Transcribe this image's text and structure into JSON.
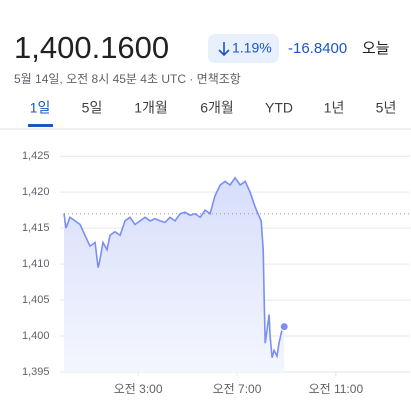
{
  "header": {
    "price": "1,400.1600",
    "change_percent": "1.19%",
    "change": "-16.8400",
    "period": "오늘",
    "subtitle": "5월 14일, 오전 8시 45분 4초 UTC · 면책조항"
  },
  "tabs": [
    "1일",
    "5일",
    "1개월",
    "6개월",
    "YTD",
    "1년",
    "5년"
  ],
  "chart_data": {
    "type": "line",
    "x": [
      0,
      0.08,
      0.24,
      0.45,
      0.65,
      0.85,
      1.05,
      1.26,
      1.38,
      1.42,
      1.58,
      1.74,
      1.86,
      2.06,
      2.27,
      2.47,
      2.67,
      2.87,
      3.08,
      3.28,
      3.48,
      3.68,
      3.89,
      4.09,
      4.29,
      4.49,
      4.7,
      4.9,
      5.1,
      5.3,
      5.51,
      5.71,
      5.91,
      6.11,
      6.32,
      6.52,
      6.72,
      6.92,
      7.13,
      7.33,
      7.53,
      7.73,
      7.85,
      7.98,
      8.06,
      8.1,
      8.14,
      8.22,
      8.3,
      8.34,
      8.42,
      8.5,
      8.62,
      8.7,
      8.83,
      8.91
    ],
    "series": [
      {
        "color": "#7b8ff0",
        "values": [
          1417,
          1415,
          1416.5,
          1416,
          1415.5,
          1414,
          1412.5,
          1413,
          1409.5,
          1410,
          1413,
          1412,
          1414,
          1414.5,
          1414,
          1416,
          1416.5,
          1415.5,
          1416,
          1416.5,
          1416,
          1416.3,
          1416,
          1415.8,
          1416.5,
          1416,
          1417,
          1417.2,
          1416.8,
          1417,
          1416.5,
          1417.5,
          1417,
          1419.5,
          1421,
          1421.5,
          1421,
          1422,
          1421,
          1421.5,
          1420,
          1418,
          1417,
          1416,
          1412,
          1405,
          1399,
          1401,
          1403,
          1400,
          1397,
          1398,
          1397.2,
          1399,
          1401,
          1401.3
        ]
      }
    ],
    "previous_close": 1417,
    "xlim": [
      0,
      14
    ],
    "xticks": [
      {
        "value": 3,
        "label": "오전 3:00"
      },
      {
        "value": 7,
        "label": "오전 7:00"
      },
      {
        "value": 11,
        "label": "오전 11:00"
      }
    ],
    "ylim": [
      1395,
      1426
    ],
    "yticks": [
      {
        "value": 1395,
        "label": "1,395"
      },
      {
        "value": 1400,
        "label": "1,400"
      },
      {
        "value": 1405,
        "label": "1,405"
      },
      {
        "value": 1410,
        "label": "1,410"
      },
      {
        "value": 1415,
        "label": "1,415"
      },
      {
        "value": 1420,
        "label": "1,420"
      },
      {
        "value": 1425,
        "label": "1,425"
      }
    ],
    "grid": true
  }
}
